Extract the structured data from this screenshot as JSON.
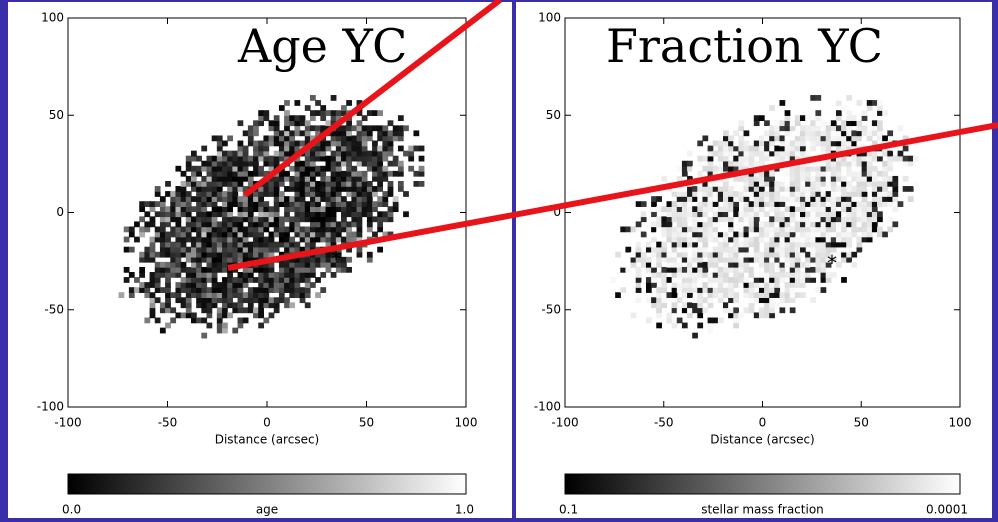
{
  "panels": [
    {
      "label": "Age YC",
      "xticks": [
        -100,
        -50,
        0,
        50,
        100
      ],
      "yticks": [
        -100,
        -50,
        0,
        50,
        100
      ],
      "xlabel": "Distance (arcsec)",
      "colorbar": {
        "min_label": "0.0",
        "center_label": "age",
        "max_label": "1.0"
      }
    },
    {
      "label": "Fraction YC",
      "xticks": [
        -100,
        -50,
        0,
        50,
        100
      ],
      "yticks": [
        -100,
        -50,
        0,
        50,
        100
      ],
      "xlabel": "Distance (arcsec)",
      "colorbar": {
        "min_label": "0.1",
        "center_label": "stellar mass fraction",
        "max_label": "0.0001"
      }
    }
  ]
}
